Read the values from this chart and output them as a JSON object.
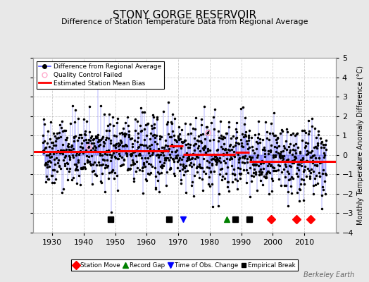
{
  "title": "STONY GORGE RESERVOIR",
  "subtitle": "Difference of Station Temperature Data from Regional Average",
  "ylabel_right": "Monthly Temperature Anomaly Difference (°C)",
  "xmin": 1924,
  "xmax": 2020,
  "ymin": -4,
  "ymax": 5,
  "yticks": [
    -4,
    -3,
    -2,
    -1,
    0,
    1,
    2,
    3,
    4,
    5
  ],
  "xticks": [
    1930,
    1940,
    1950,
    1960,
    1970,
    1980,
    1990,
    2000,
    2010
  ],
  "background_color": "#e8e8e8",
  "plot_bg_color": "#ffffff",
  "line_color": "#5555ff",
  "marker_color": "#000000",
  "bias_color": "#ff0000",
  "qc_color": "#ffaacc",
  "seed": 42,
  "n_points": 1080,
  "start_year": 1927.0,
  "bias_segments": [
    {
      "xstart": 1924,
      "xend": 1948.5,
      "bias": 0.18
    },
    {
      "xstart": 1948.5,
      "xend": 1967.0,
      "bias": 0.22
    },
    {
      "xstart": 1967.0,
      "xend": 1971.5,
      "bias": 0.45
    },
    {
      "xstart": 1971.5,
      "xend": 1988.0,
      "bias": 0.02
    },
    {
      "xstart": 1988.0,
      "xend": 1992.5,
      "bias": 0.15
    },
    {
      "xstart": 1992.5,
      "xend": 2020,
      "bias": -0.35
    }
  ],
  "station_moves": [
    1999.5,
    2007.5,
    2012.0
  ],
  "record_gaps": [
    1985.5
  ],
  "obs_changes": [
    1971.5
  ],
  "emp_breaks": [
    1948.5,
    1967.0,
    1988.0,
    1992.5
  ],
  "qc_failed": [
    1941.5,
    1979.5
  ],
  "watermark": "Berkeley Earth",
  "grid_color": "#aaaaaa",
  "grid_style": "--",
  "grid_alpha": 0.6
}
